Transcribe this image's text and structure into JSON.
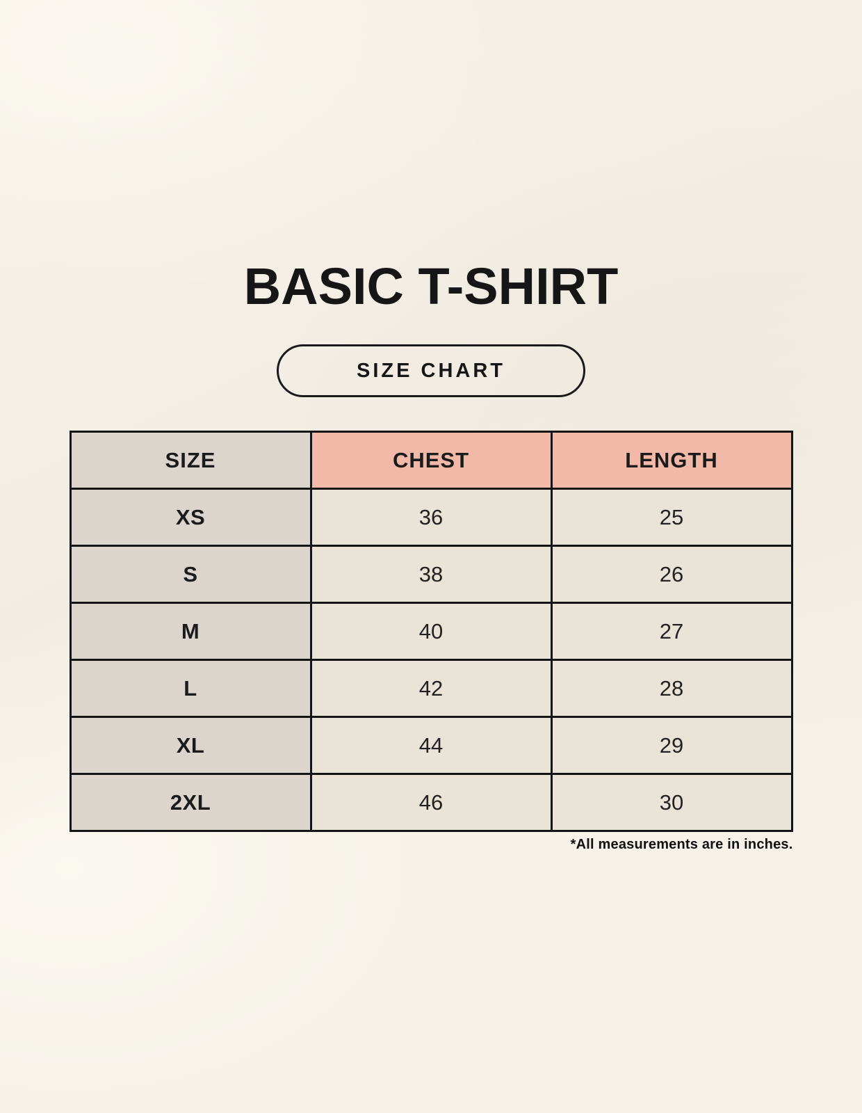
{
  "page_title": "BASIC T-SHIRT",
  "badge_label": "SIZE CHART",
  "footnote": "*All measurements are in inches.",
  "colors": {
    "page_bg": "#f6f2ea",
    "table_border": "#141414",
    "size_header_bg": "#dcd5ce",
    "measure_header_bg": "#f2b9a8",
    "size_col_bg": "#dcd5ce",
    "data_cell_bg": "#eae3d7",
    "text": "#1b1b1b"
  },
  "chart_data": {
    "type": "table",
    "title": "BASIC T-SHIRT",
    "columns": [
      "SIZE",
      "CHEST",
      "LENGTH"
    ],
    "rows": [
      {
        "size": "XS",
        "chest": "36",
        "length": "25"
      },
      {
        "size": "S",
        "chest": "38",
        "length": "26"
      },
      {
        "size": "M",
        "chest": "40",
        "length": "27"
      },
      {
        "size": "L",
        "chest": "42",
        "length": "28"
      },
      {
        "size": "XL",
        "chest": "44",
        "length": "29"
      },
      {
        "size": "2XL",
        "chest": "46",
        "length": "30"
      }
    ],
    "units": "inches",
    "note": "*All measurements are in inches."
  }
}
